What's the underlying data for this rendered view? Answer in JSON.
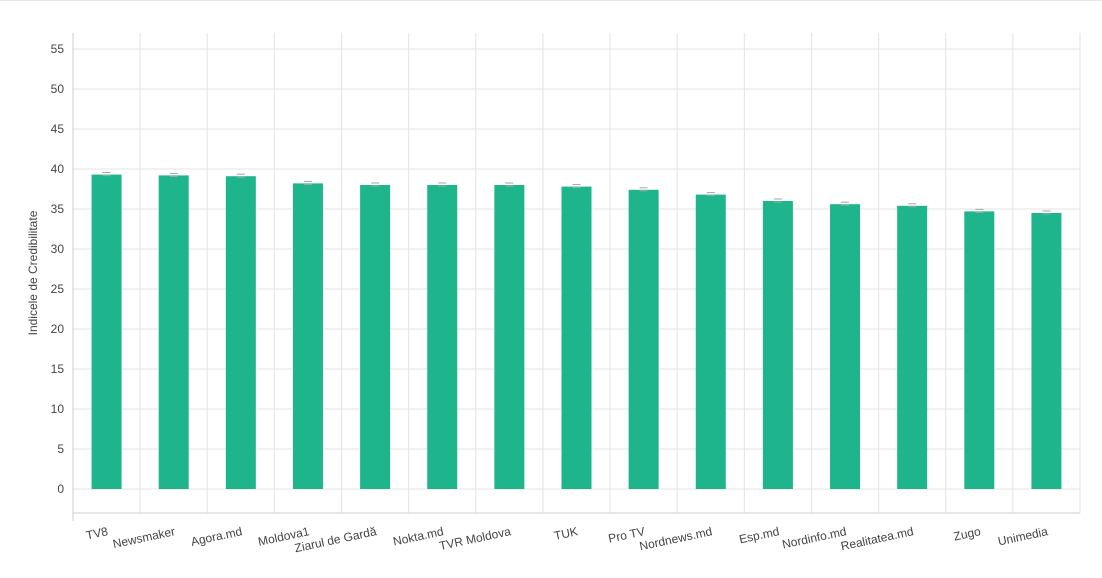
{
  "chart_data": {
    "type": "bar",
    "title": "",
    "xlabel": "",
    "ylabel": "Indicele de Credibilitate",
    "ylim": [
      -3,
      57
    ],
    "yticks": [
      0,
      5,
      10,
      15,
      20,
      25,
      30,
      35,
      40,
      45,
      50,
      55
    ],
    "grid": true,
    "legend": "none",
    "bar_color": "#1fb58c",
    "categories": [
      "TV8",
      "Newsmaker",
      "Agora.md",
      "Moldova1",
      "Ziarul de Gardă",
      "Nokta.md",
      "TVR Moldova",
      "TUK",
      "Pro TV",
      "Nordnews.md",
      "Esp.md",
      "Nordinfo.md",
      "Realitatea.md",
      "Zugo",
      "Unimedia"
    ],
    "values": [
      39.3,
      39.2,
      39.1,
      38.2,
      38.0,
      38.0,
      38.0,
      37.8,
      37.4,
      36.8,
      36.0,
      35.6,
      35.4,
      34.7,
      34.5
    ]
  }
}
